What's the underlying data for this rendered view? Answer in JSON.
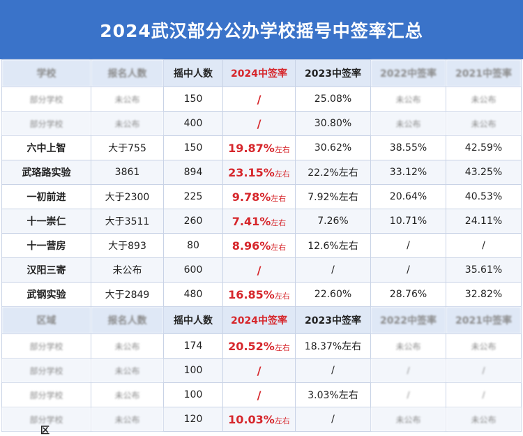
{
  "title": "2024武汉部分公办学校摇号中签率汇总",
  "header": {
    "col1": "学校",
    "col2": "报名人数",
    "col3": "摇中人数",
    "col4": "2024中签率",
    "col5": "2023中签率",
    "col6": "2022中签率",
    "col7": "2021中签率"
  },
  "rows_a": [
    {
      "name": "部分学校",
      "applicants": "未公布",
      "winners": "150",
      "r2024": "/",
      "r2024_sfx": "",
      "r2023": "25.08%",
      "r2022": "未公布",
      "r2021": "未公布"
    },
    {
      "name": "部分学校",
      "applicants": "未公布",
      "winners": "400",
      "r2024": "/",
      "r2024_sfx": "",
      "r2023": "30.80%",
      "r2022": "未公布",
      "r2021": "未公布"
    },
    {
      "name": "六中上智",
      "applicants": "大于755",
      "winners": "150",
      "r2024": "19.87%",
      "r2024_sfx": "左右",
      "r2023": "30.62%",
      "r2022": "38.55%",
      "r2021": "42.59%"
    },
    {
      "name": "武珞路实验",
      "applicants": "3861",
      "winners": "894",
      "r2024": "23.15%",
      "r2024_sfx": "左右",
      "r2023": "22.2%左右",
      "r2022": "33.12%",
      "r2021": "43.25%"
    },
    {
      "name": "一初前进",
      "applicants": "大于2300",
      "winners": "225",
      "r2024": "9.78%",
      "r2024_sfx": "左右",
      "r2023": "7.92%左右",
      "r2022": "20.64%",
      "r2021": "40.53%"
    },
    {
      "name": "十一崇仁",
      "applicants": "大于3511",
      "winners": "260",
      "r2024": "7.41%",
      "r2024_sfx": "左右",
      "r2023": "7.26%",
      "r2022": "10.71%",
      "r2021": "24.11%"
    },
    {
      "name": "十一营房",
      "applicants": "大于893",
      "winners": "80",
      "r2024": "8.96%",
      "r2024_sfx": "左右",
      "r2023": "12.6%左右",
      "r2022": "/",
      "r2021": "/"
    },
    {
      "name": "汉阳三寄",
      "applicants": "未公布",
      "winners": "600",
      "r2024": "/",
      "r2024_sfx": "",
      "r2023": "/",
      "r2022": "/",
      "r2021": "35.61%"
    },
    {
      "name": "武钢实验",
      "applicants": "大于2849",
      "winners": "480",
      "r2024": "16.85%",
      "r2024_sfx": "左右",
      "r2023": "22.60%",
      "r2022": "28.76%",
      "r2021": "32.82%"
    }
  ],
  "header2": {
    "col1": "区域",
    "col2": "报名人数",
    "col3": "摇中人数",
    "col4": "2024中签率",
    "col5": "2023中签率",
    "col6": "2022中签率",
    "col7": "2021中签率"
  },
  "rows_b": [
    {
      "name": "部分学校",
      "applicants": "未公布",
      "winners": "174",
      "r2024": "20.52%",
      "r2024_sfx": "左右",
      "r2023": "18.37%左右",
      "r2022": "未公布",
      "r2021": "未公布"
    },
    {
      "name": "部分学校",
      "applicants": "未公布",
      "winners": "100",
      "r2024": "/",
      "r2024_sfx": "",
      "r2023": "/",
      "r2022": "/",
      "r2021": "/"
    },
    {
      "name": "部分学校",
      "applicants": "未公布",
      "winners": "100",
      "r2024": "/",
      "r2024_sfx": "",
      "r2023": "3.03%左右",
      "r2022": "/",
      "r2021": "/"
    },
    {
      "name": "部分学校",
      "applicants": "未公布",
      "winners": "120",
      "r2024": "10.03%",
      "r2024_sfx": "左右",
      "r2023": "/",
      "r2022": "未公布",
      "r2021": "未公布"
    }
  ],
  "stray_label": "区"
}
